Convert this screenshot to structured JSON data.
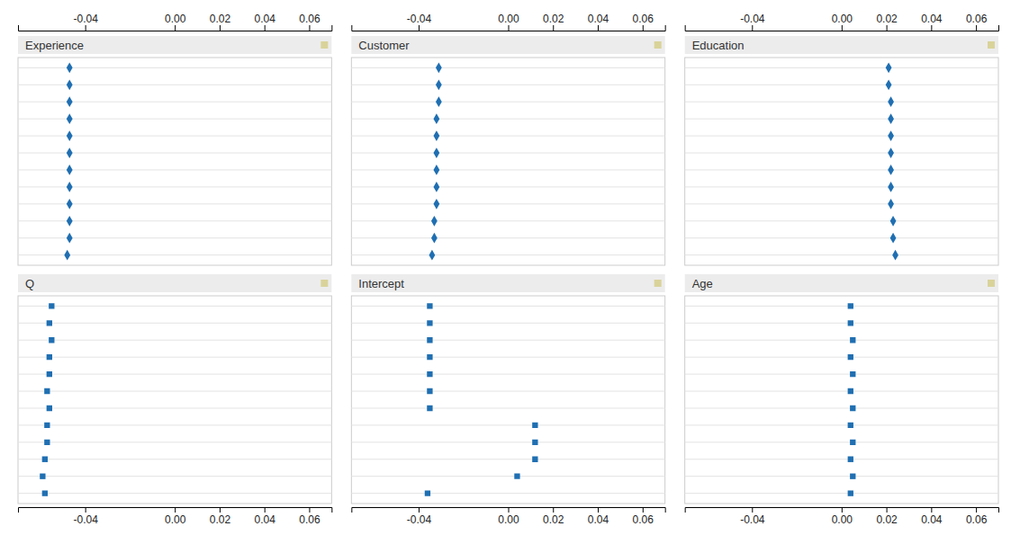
{
  "chart_data": {
    "type": "dot",
    "grid": true,
    "color": "#1f6fb2",
    "xlim": [
      -0.07,
      0.07
    ],
    "xticks": [
      -0.04,
      {
        "value": 0,
        "label": "0.00"
      },
      0.02,
      0.04,
      0.06
    ],
    "categories": [
      null,
      null,
      null,
      null,
      null,
      null,
      null,
      null,
      null,
      null,
      null,
      null
    ],
    "panels": [
      {
        "title": "Experience",
        "marker": "diamond",
        "values": [
          -0.047,
          -0.047,
          -0.047,
          -0.047,
          -0.047,
          -0.047,
          -0.047,
          -0.047,
          -0.047,
          -0.047,
          -0.047,
          -0.048
        ]
      },
      {
        "title": "Customer",
        "marker": "diamond",
        "values": [
          -0.031,
          -0.031,
          -0.031,
          -0.032,
          -0.032,
          -0.032,
          -0.032,
          -0.032,
          -0.032,
          -0.033,
          -0.033,
          -0.034
        ]
      },
      {
        "title": "Education",
        "marker": "diamond",
        "values": [
          0.021,
          0.021,
          0.022,
          0.022,
          0.022,
          0.022,
          0.022,
          0.022,
          0.022,
          0.023,
          0.023,
          0.024
        ]
      },
      {
        "title": "Q",
        "marker": "square",
        "values": [
          -0.055,
          -0.056,
          -0.055,
          -0.056,
          -0.056,
          -0.057,
          -0.056,
          -0.057,
          -0.057,
          -0.058,
          -0.059,
          -0.058
        ]
      },
      {
        "title": "Intercept",
        "marker": "square",
        "values": [
          -0.035,
          -0.035,
          -0.035,
          -0.035,
          -0.035,
          -0.035,
          -0.035,
          0.012,
          0.012,
          0.012,
          0.004,
          -0.036
        ]
      },
      {
        "title": "Age",
        "marker": "square",
        "values": [
          0.004,
          0.004,
          0.005,
          0.004,
          0.005,
          0.004,
          0.005,
          0.004,
          0.005,
          0.004,
          0.005,
          0.004
        ]
      }
    ]
  }
}
